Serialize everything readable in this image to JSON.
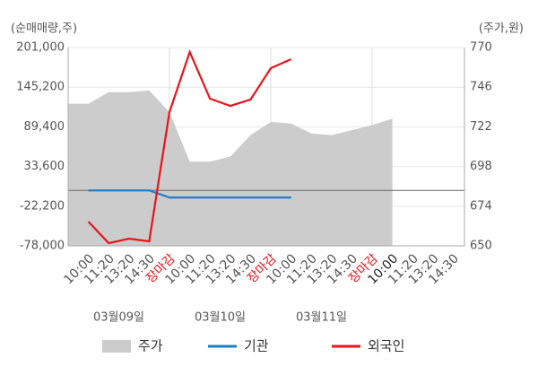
{
  "chart_data": {
    "type": "combo",
    "y_label": "(순매매량,주)",
    "y2_label": "(주가,원)",
    "categories": [
      "10:00",
      "11:20",
      "13:20",
      "14:30",
      "장마감",
      "10:00",
      "11:20",
      "13:20",
      "14:30",
      "장마감",
      "10:00",
      "11:20",
      "13:20",
      "14:30",
      "장마감",
      "10:00",
      "11:20",
      "13:20",
      "14:30"
    ],
    "category_label_colors": [
      "#555",
      "#555",
      "#555",
      "#555",
      "#e8141c",
      "#555",
      "#555",
      "#555",
      "#555",
      "#e8141c",
      "#555",
      "#555",
      "#555",
      "#555",
      "#e8141c",
      "#222",
      "#555",
      "#555",
      "#555"
    ],
    "groups": [
      "03월09일",
      "03월10일",
      "03월11일"
    ],
    "ylim": [
      -78000,
      201000
    ],
    "yticks": [
      {
        "value": -78000,
        "label": "-78,000"
      },
      {
        "value": -22200,
        "label": "-22,200"
      },
      {
        "value": 33600,
        "label": "33,600"
      },
      {
        "value": 89400,
        "label": "89,400"
      },
      {
        "value": 145200,
        "label": "145,200"
      },
      {
        "value": 201000,
        "label": "201,000"
      }
    ],
    "y2lim": [
      650,
      770
    ],
    "y2ticks": [
      650,
      674,
      698,
      722,
      746,
      770
    ],
    "grid": true,
    "series": [
      {
        "name": "주가",
        "kind": "area",
        "axis": "y2",
        "color": "#cccccc",
        "values": [
          736,
          743,
          743,
          744,
          731,
          701,
          701,
          704,
          717,
          725,
          724,
          718,
          717,
          720,
          723,
          727,
          null,
          null,
          null
        ]
      },
      {
        "name": "기관",
        "kind": "line",
        "color": "#1f7fc6",
        "values": [
          0,
          0,
          0,
          0,
          -10000,
          -10000,
          -10000,
          -10000,
          -10000,
          -10000,
          -10000,
          null,
          null,
          null,
          null,
          null,
          null,
          null,
          null
        ]
      },
      {
        "name": "외국인",
        "kind": "line",
        "color": "#e8141c",
        "values": [
          -43900,
          -74200,
          -67900,
          -71700,
          110100,
          194700,
          129000,
          118900,
          127800,
          172000,
          184600,
          null,
          null,
          null,
          null,
          null,
          null,
          null,
          null
        ]
      }
    ]
  }
}
